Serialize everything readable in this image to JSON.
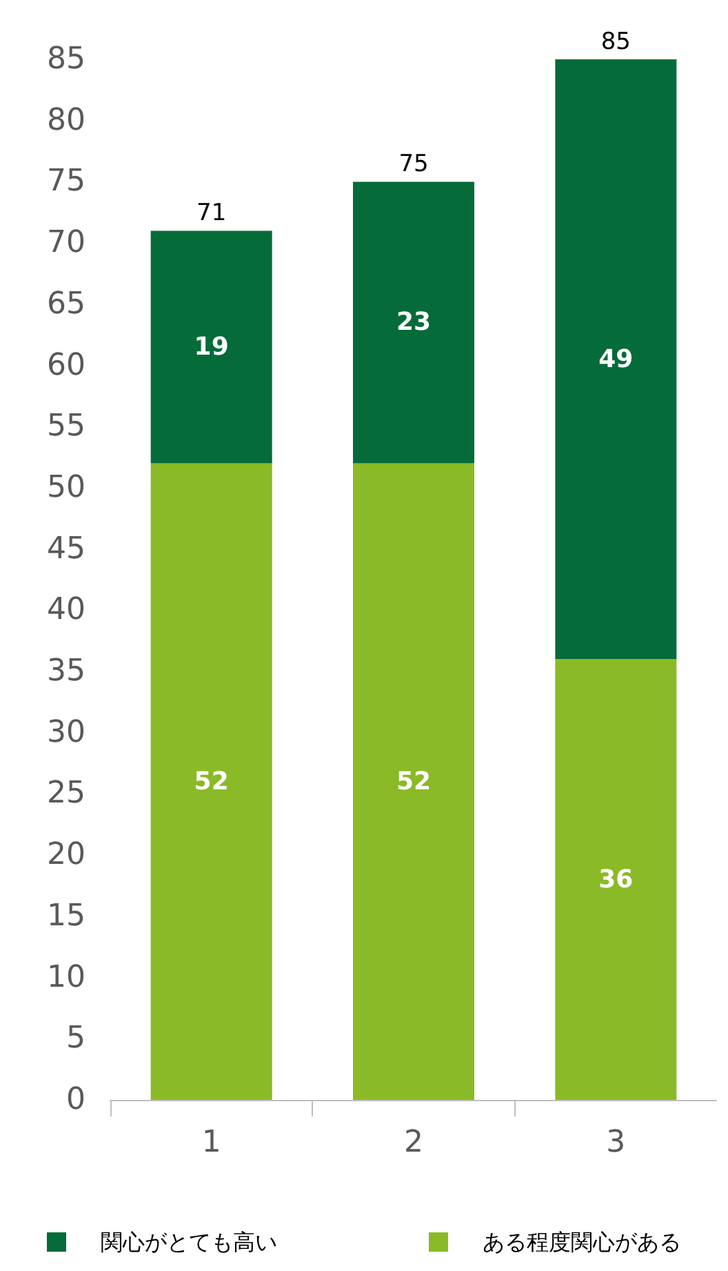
{
  "chart_data": {
    "type": "bar",
    "stacked": true,
    "categories": [
      "1",
      "2",
      "3"
    ],
    "series": [
      {
        "name": "ある程度関心がある",
        "color": "#8aba27",
        "values": [
          52,
          52,
          36
        ]
      },
      {
        "name": "関心がとても高い",
        "color": "#056b38",
        "values": [
          19,
          23,
          49
        ]
      }
    ],
    "ylim": [
      0,
      85
    ],
    "yticks": [
      0,
      5,
      10,
      15,
      20,
      25,
      30,
      35,
      40,
      45,
      50,
      55,
      60,
      65,
      70,
      75,
      80,
      85
    ],
    "data_labels": true,
    "totals": [
      "71",
      "75",
      "85"
    ],
    "legend": "bottom",
    "grid": false
  }
}
